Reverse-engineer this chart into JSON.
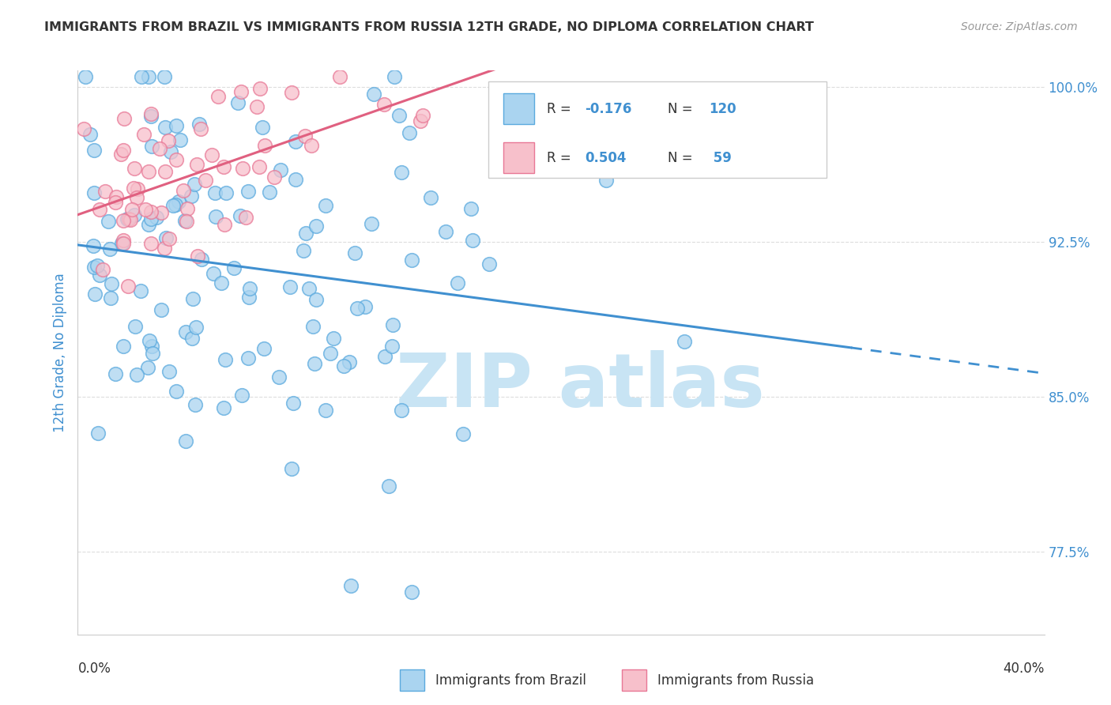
{
  "title": "IMMIGRANTS FROM BRAZIL VS IMMIGRANTS FROM RUSSIA 12TH GRADE, NO DIPLOMA CORRELATION CHART",
  "source": "Source: ZipAtlas.com",
  "ylabel": "12th Grade, No Diploma",
  "xlim": [
    0.0,
    0.4
  ],
  "ylim": [
    0.735,
    1.008
  ],
  "brazil_R": -0.176,
  "brazil_N": 120,
  "russia_R": 0.504,
  "russia_N": 59,
  "brazil_color": "#aad4f0",
  "brazil_edge_color": "#5baade",
  "russia_color": "#f7c0cb",
  "russia_edge_color": "#e87896",
  "brazil_line_color": "#4090d0",
  "russia_line_color": "#e06080",
  "y_tick_vals": [
    0.775,
    0.85,
    0.925,
    1.0
  ],
  "y_tick_labels": [
    "77.5%",
    "85.0%",
    "92.5%",
    "100.0%"
  ],
  "watermark_color": "#c8e4f4",
  "grid_color": "#dddddd",
  "title_color": "#333333",
  "source_color": "#999999",
  "axis_label_color": "#4090d0",
  "tick_label_color": "#4090d0",
  "legend_text_color": "#333333",
  "legend_val_color": "#4090d0"
}
